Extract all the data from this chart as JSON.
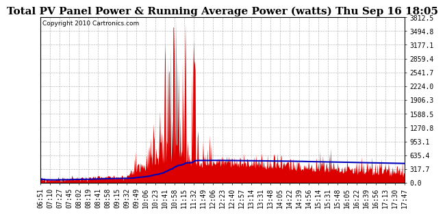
{
  "title": "Total PV Panel Power & Running Average Power (watts) Thu Sep 16 18:05",
  "copyright": "Copyright 2010 Cartronics.com",
  "background_color": "#ffffff",
  "plot_bg_color": "#ffffff",
  "y_max": 3812.5,
  "y_ticks": [
    0.0,
    317.7,
    635.4,
    953.1,
    1270.8,
    1588.5,
    1906.3,
    2224.0,
    2541.7,
    2859.4,
    3177.1,
    3494.8,
    3812.5
  ],
  "x_labels": [
    "06:51",
    "07:10",
    "07:27",
    "07:45",
    "08:02",
    "08:19",
    "08:41",
    "08:58",
    "09:15",
    "09:32",
    "09:49",
    "10:06",
    "10:23",
    "10:41",
    "10:58",
    "11:15",
    "11:32",
    "11:49",
    "12:06",
    "12:23",
    "12:40",
    "12:57",
    "13:14",
    "13:31",
    "13:48",
    "14:05",
    "14:22",
    "14:39",
    "14:56",
    "15:14",
    "15:31",
    "15:48",
    "16:05",
    "16:22",
    "16:39",
    "16:56",
    "17:13",
    "17:30",
    "17:47"
  ],
  "bar_color": "#dd0000",
  "avg_line_color": "#0000bb",
  "grid_color": "#aaaaaa",
  "title_fontsize": 11,
  "tick_fontsize": 7,
  "copyright_fontsize": 6.5,
  "n_points": 660
}
